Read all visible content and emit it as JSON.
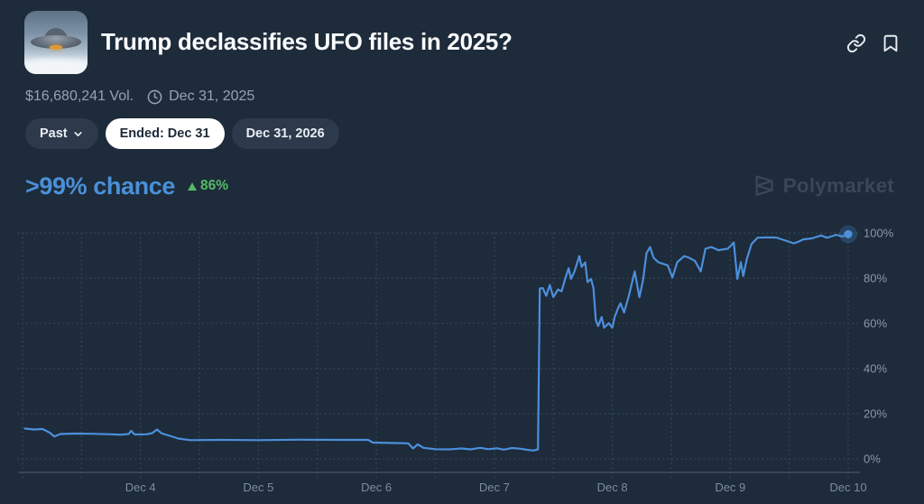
{
  "header": {
    "title": "Trump declassifies UFO files in 2025?",
    "icons": {
      "copy_link": "link-icon",
      "bookmark": "bookmark-icon"
    }
  },
  "meta": {
    "volume": "$16,680,241 Vol.",
    "clock_icon": "clock-icon",
    "end_date": "Dec 31, 2025"
  },
  "filters": {
    "past_label": "Past",
    "past_chevron_icon": "chevron-down-icon",
    "ended_label": "Ended: Dec 31",
    "next_label": "Dec 31, 2026"
  },
  "chance": {
    "value_label": ">99% chance",
    "direction": "up",
    "direction_icon": "up-triangle-icon",
    "change_label": "86%",
    "value_color": "#4b90d8",
    "change_color": "#55b968"
  },
  "watermark": {
    "logo_icon": "polymarket-logo-icon",
    "brand": "Polymarket"
  },
  "colors": {
    "background": "#1d2b3a",
    "pill_bg": "#2c3a4b",
    "pill_active_bg": "#ffffff",
    "text_primary": "#fbfcfd",
    "text_muted": "#97a3b3",
    "grid": "#344459",
    "axis": "#45546a",
    "line": "#4c8fdb",
    "watermark": "#3a4759"
  },
  "chart_data": {
    "type": "line",
    "series_name": "chance",
    "x_unit": "days since Dec 3",
    "x_range": [
      0,
      7
    ],
    "x_range_dates": [
      "Dec 3",
      "Dec 10"
    ],
    "x_minor_tick_interval_days": 0.5,
    "ylim": [
      0,
      100
    ],
    "grid": "dotted",
    "legend": "none",
    "line_color": "#4c8fdb",
    "x_ticks": [
      {
        "d": 1,
        "label": "Dec 4"
      },
      {
        "d": 2,
        "label": "Dec 5"
      },
      {
        "d": 3,
        "label": "Dec 6"
      },
      {
        "d": 4,
        "label": "Dec 7"
      },
      {
        "d": 5,
        "label": "Dec 8"
      },
      {
        "d": 6,
        "label": "Dec 9"
      },
      {
        "d": 7,
        "label": "Dec 10"
      }
    ],
    "y_ticks": [
      {
        "v": 100,
        "label": "100%"
      },
      {
        "v": 80,
        "label": "80%"
      },
      {
        "v": 60,
        "label": "60%"
      },
      {
        "v": 40,
        "label": "40%"
      },
      {
        "v": 20,
        "label": "20%"
      },
      {
        "v": 0,
        "label": "0%"
      }
    ],
    "points": [
      [
        0.02,
        13.4
      ],
      [
        0.1,
        13.0
      ],
      [
        0.17,
        13.2
      ],
      [
        0.23,
        11.6
      ],
      [
        0.27,
        9.9
      ],
      [
        0.32,
        11.0
      ],
      [
        0.45,
        11.2
      ],
      [
        0.6,
        11.1
      ],
      [
        0.75,
        10.9
      ],
      [
        0.83,
        10.7
      ],
      [
        0.9,
        11.0
      ],
      [
        0.92,
        12.4
      ],
      [
        0.95,
        10.8
      ],
      [
        1.05,
        10.9
      ],
      [
        1.1,
        11.4
      ],
      [
        1.14,
        13.0
      ],
      [
        1.18,
        11.3
      ],
      [
        1.26,
        10.0
      ],
      [
        1.32,
        9.0
      ],
      [
        1.42,
        8.3
      ],
      [
        1.7,
        8.4
      ],
      [
        2.0,
        8.3
      ],
      [
        2.33,
        8.5
      ],
      [
        2.7,
        8.4
      ],
      [
        2.93,
        8.4
      ],
      [
        2.97,
        7.2
      ],
      [
        3.15,
        7.0
      ],
      [
        3.27,
        6.9
      ],
      [
        3.31,
        4.6
      ],
      [
        3.35,
        6.4
      ],
      [
        3.4,
        4.9
      ],
      [
        3.5,
        4.3
      ],
      [
        3.62,
        4.2
      ],
      [
        3.72,
        4.6
      ],
      [
        3.8,
        4.2
      ],
      [
        3.88,
        4.9
      ],
      [
        3.95,
        4.3
      ],
      [
        4.02,
        4.7
      ],
      [
        4.08,
        4.1
      ],
      [
        4.15,
        4.8
      ],
      [
        4.22,
        4.5
      ],
      [
        4.28,
        4.0
      ],
      [
        4.33,
        3.7
      ],
      [
        4.37,
        4.2
      ],
      [
        4.385,
        75.5
      ],
      [
        4.41,
        75.6
      ],
      [
        4.44,
        72.2
      ],
      [
        4.47,
        77.0
      ],
      [
        4.5,
        71.6
      ],
      [
        4.54,
        75.0
      ],
      [
        4.57,
        74.2
      ],
      [
        4.6,
        79.7
      ],
      [
        4.63,
        84.4
      ],
      [
        4.65,
        79.7
      ],
      [
        4.68,
        83.0
      ],
      [
        4.72,
        89.8
      ],
      [
        4.74,
        85.0
      ],
      [
        4.77,
        87.0
      ],
      [
        4.79,
        78.3
      ],
      [
        4.82,
        79.7
      ],
      [
        4.84,
        75.6
      ],
      [
        4.86,
        61.5
      ],
      [
        4.88,
        58.8
      ],
      [
        4.91,
        62.8
      ],
      [
        4.93,
        58.1
      ],
      [
        4.97,
        60.1
      ],
      [
        5.0,
        58.1
      ],
      [
        5.02,
        62.8
      ],
      [
        5.05,
        66.9
      ],
      [
        5.07,
        68.9
      ],
      [
        5.1,
        64.8
      ],
      [
        5.14,
        72.2
      ],
      [
        5.19,
        83.0
      ],
      [
        5.23,
        71.6
      ],
      [
        5.26,
        79.0
      ],
      [
        5.29,
        91.1
      ],
      [
        5.32,
        93.8
      ],
      [
        5.35,
        89.1
      ],
      [
        5.39,
        87.1
      ],
      [
        5.47,
        85.7
      ],
      [
        5.51,
        80.3
      ],
      [
        5.55,
        87.1
      ],
      [
        5.61,
        89.8
      ],
      [
        5.65,
        89.1
      ],
      [
        5.7,
        87.7
      ],
      [
        5.75,
        83.0
      ],
      [
        5.79,
        93.1
      ],
      [
        5.84,
        93.8
      ],
      [
        5.9,
        92.4
      ],
      [
        5.98,
        93.1
      ],
      [
        6.03,
        95.8
      ],
      [
        6.06,
        79.7
      ],
      [
        6.09,
        87.1
      ],
      [
        6.11,
        81.0
      ],
      [
        6.14,
        88.4
      ],
      [
        6.18,
        95.1
      ],
      [
        6.23,
        97.9
      ],
      [
        6.31,
        98.1
      ],
      [
        6.39,
        98.0
      ],
      [
        6.46,
        96.8
      ],
      [
        6.54,
        95.4
      ],
      [
        6.58,
        96.2
      ],
      [
        6.62,
        97.2
      ],
      [
        6.69,
        97.6
      ],
      [
        6.77,
        98.9
      ],
      [
        6.82,
        97.9
      ],
      [
        6.9,
        99.2
      ],
      [
        6.95,
        98.5
      ],
      [
        7.0,
        99.5
      ]
    ],
    "end_dot": {
      "d": 7.0,
      "p": 99.5
    }
  }
}
